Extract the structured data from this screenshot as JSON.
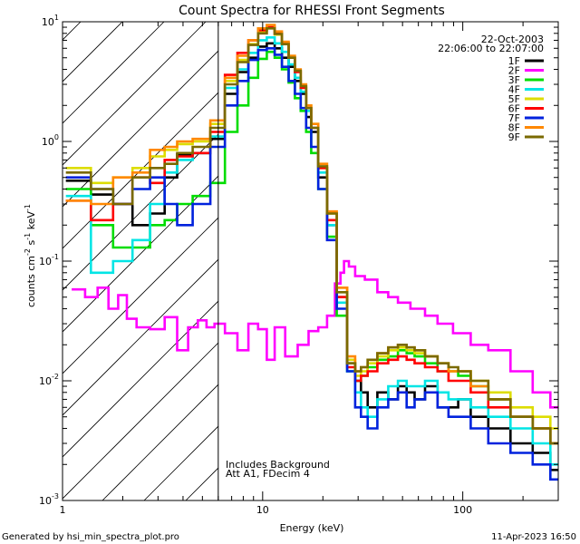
{
  "chart_data": {
    "type": "line",
    "title": "Count Spectra for RHESSI Front Segments",
    "xlabel": "Energy (keV)",
    "ylabel_parts": [
      "counts cm",
      "-2",
      " s",
      "-1",
      " keV",
      "-1"
    ],
    "xscale": "log",
    "yscale": "log",
    "xlim": [
      1,
      300
    ],
    "ylim": [
      0.001,
      10
    ],
    "x_ticks": [
      {
        "v": 1,
        "label": "1"
      },
      {
        "v": 10,
        "label": "10"
      },
      {
        "v": 100,
        "label": "100"
      }
    ],
    "y_ticks": [
      {
        "v": 10,
        "label": "10",
        "exp": "1"
      },
      {
        "v": 1,
        "label": "10",
        "exp": "0"
      },
      {
        "v": 0.1,
        "label": "10",
        "exp": "-1"
      },
      {
        "v": 0.01,
        "label": "10",
        "exp": "-2"
      },
      {
        "v": 0.001,
        "label": "10",
        "exp": "-3"
      }
    ],
    "date_text": "22-Oct-2003",
    "time_range_text": "22:06:00 to 22:07:00",
    "threshold_energy": 6,
    "annotations": [
      "Includes Background",
      "Att A1, FDecim 4"
    ],
    "series": [
      {
        "name": "1F",
        "color": "#000000",
        "x": [
          1.2,
          1.6,
          2,
          2.5,
          3,
          3.5,
          4,
          5,
          6,
          7,
          8,
          9,
          10,
          11,
          12,
          13,
          14,
          15,
          16,
          17,
          18,
          20,
          22,
          25,
          28,
          30,
          32,
          35,
          40,
          45,
          50,
          55,
          60,
          70,
          80,
          90,
          100,
          120,
          150,
          200,
          250,
          300
        ],
        "y": [
          0.47,
          0.36,
          0.3,
          0.2,
          0.25,
          0.5,
          0.78,
          0.8,
          1.05,
          2.5,
          3.8,
          5.0,
          6.2,
          6.6,
          6.0,
          5.0,
          4.2,
          3.2,
          2.5,
          1.6,
          1.2,
          0.5,
          0.2,
          0.05,
          0.014,
          0.01,
          0.008,
          0.006,
          0.008,
          0.007,
          0.009,
          0.008,
          0.007,
          0.009,
          0.006,
          0.006,
          0.007,
          0.005,
          0.004,
          0.003,
          0.0025,
          0.0018
        ]
      },
      {
        "name": "2F",
        "color": "#ff00ff",
        "x": [
          1.2,
          1.4,
          1.6,
          1.8,
          2,
          2.2,
          2.5,
          3,
          3.5,
          4,
          4.5,
          5,
          5.5,
          6,
          7,
          8,
          9,
          10,
          11,
          12,
          14,
          16,
          18,
          20,
          22,
          24,
          25,
          26,
          28,
          30,
          35,
          40,
          45,
          50,
          60,
          70,
          80,
          100,
          120,
          150,
          200,
          250,
          300
        ],
        "y": [
          0.058,
          0.05,
          0.06,
          0.04,
          0.052,
          0.033,
          0.028,
          0.027,
          0.034,
          0.018,
          0.028,
          0.032,
          0.028,
          0.03,
          0.025,
          0.018,
          0.03,
          0.027,
          0.015,
          0.028,
          0.016,
          0.02,
          0.026,
          0.028,
          0.035,
          0.065,
          0.08,
          0.1,
          0.09,
          0.075,
          0.07,
          0.055,
          0.05,
          0.045,
          0.04,
          0.035,
          0.03,
          0.025,
          0.02,
          0.018,
          0.012,
          0.008,
          0.006
        ]
      },
      {
        "name": "3F",
        "color": "#00dd00",
        "x": [
          1.2,
          1.6,
          2,
          2.5,
          3,
          3.5,
          4,
          5,
          6,
          7,
          8,
          9,
          10,
          11,
          12,
          13,
          14,
          15,
          16,
          17,
          18,
          20,
          22,
          25,
          28,
          30,
          32,
          35,
          40,
          45,
          50,
          55,
          60,
          70,
          80,
          90,
          100,
          120,
          150,
          200,
          250,
          300
        ],
        "y": [
          0.4,
          0.2,
          0.13,
          0.13,
          0.2,
          0.22,
          0.3,
          0.35,
          0.45,
          1.2,
          2.0,
          3.4,
          4.9,
          5.6,
          5.0,
          4.0,
          3.1,
          2.3,
          1.8,
          1.2,
          0.8,
          0.4,
          0.16,
          0.035,
          0.012,
          0.01,
          0.011,
          0.013,
          0.015,
          0.016,
          0.018,
          0.017,
          0.016,
          0.014,
          0.012,
          0.012,
          0.011,
          0.009,
          0.007,
          0.005,
          0.004,
          0.003
        ]
      },
      {
        "name": "4F",
        "color": "#00e5e5",
        "x": [
          1.2,
          1.6,
          2,
          2.5,
          3,
          3.5,
          4,
          5,
          6,
          7,
          8,
          9,
          10,
          11,
          12,
          13,
          14,
          15,
          16,
          17,
          18,
          20,
          22,
          25,
          28,
          30,
          32,
          35,
          40,
          45,
          50,
          55,
          60,
          70,
          80,
          90,
          100,
          120,
          150,
          200,
          250,
          300
        ],
        "y": [
          0.35,
          0.08,
          0.1,
          0.15,
          0.3,
          0.55,
          0.7,
          0.8,
          1.1,
          2.8,
          4.0,
          5.5,
          7.0,
          7.4,
          6.6,
          5.6,
          4.4,
          3.4,
          2.6,
          1.8,
          1.3,
          0.55,
          0.2,
          0.045,
          0.012,
          0.008,
          0.006,
          0.005,
          0.007,
          0.009,
          0.01,
          0.009,
          0.009,
          0.01,
          0.008,
          0.007,
          0.007,
          0.006,
          0.005,
          0.004,
          0.003,
          0.002
        ]
      },
      {
        "name": "5F",
        "color": "#dddd00",
        "x": [
          1.2,
          1.6,
          2,
          2.5,
          3,
          3.5,
          4,
          5,
          6,
          7,
          8,
          9,
          10,
          11,
          12,
          13,
          14,
          15,
          16,
          17,
          18,
          20,
          22,
          25,
          28,
          30,
          32,
          35,
          40,
          45,
          50,
          55,
          60,
          70,
          80,
          90,
          100,
          120,
          150,
          200,
          250,
          300
        ],
        "y": [
          0.6,
          0.45,
          0.5,
          0.6,
          0.75,
          0.85,
          0.95,
          1.0,
          1.4,
          3.2,
          4.8,
          6.5,
          8.2,
          8.9,
          7.8,
          6.5,
          5.0,
          3.9,
          2.9,
          2.0,
          1.4,
          0.6,
          0.25,
          0.06,
          0.015,
          0.011,
          0.012,
          0.014,
          0.016,
          0.018,
          0.019,
          0.018,
          0.017,
          0.016,
          0.014,
          0.012,
          0.012,
          0.01,
          0.008,
          0.006,
          0.005,
          0.004
        ]
      },
      {
        "name": "6F",
        "color": "#ff0000",
        "x": [
          1.2,
          1.6,
          2,
          2.5,
          3,
          3.5,
          4,
          5,
          6,
          7,
          8,
          9,
          10,
          11,
          12,
          13,
          14,
          15,
          16,
          17,
          18,
          20,
          22,
          25,
          28,
          30,
          32,
          35,
          40,
          45,
          50,
          55,
          60,
          70,
          80,
          90,
          100,
          120,
          150,
          200,
          250,
          300
        ],
        "y": [
          0.32,
          0.22,
          0.3,
          0.5,
          0.45,
          0.7,
          0.75,
          0.8,
          1.2,
          3.6,
          5.5,
          7.0,
          8.5,
          9.0,
          8.0,
          6.6,
          5.0,
          3.8,
          2.8,
          1.9,
          1.3,
          0.6,
          0.22,
          0.05,
          0.013,
          0.01,
          0.011,
          0.012,
          0.014,
          0.015,
          0.016,
          0.015,
          0.014,
          0.013,
          0.012,
          0.01,
          0.01,
          0.008,
          0.006,
          0.005,
          0.004,
          0.003
        ]
      },
      {
        "name": "7F",
        "color": "#0022dd",
        "x": [
          1.2,
          1.6,
          2,
          2.5,
          3,
          3.5,
          4,
          5,
          6,
          7,
          8,
          9,
          10,
          11,
          12,
          13,
          14,
          15,
          16,
          17,
          18,
          20,
          22,
          25,
          28,
          30,
          32,
          35,
          40,
          45,
          50,
          55,
          60,
          70,
          80,
          90,
          100,
          120,
          150,
          200,
          250,
          300
        ],
        "y": [
          0.5,
          0.4,
          0.3,
          0.4,
          0.5,
          0.3,
          0.2,
          0.3,
          0.9,
          2.0,
          3.2,
          4.8,
          5.8,
          6.0,
          5.3,
          4.2,
          3.2,
          2.5,
          1.9,
          1.3,
          0.9,
          0.4,
          0.15,
          0.04,
          0.012,
          0.006,
          0.005,
          0.004,
          0.006,
          0.007,
          0.008,
          0.006,
          0.007,
          0.008,
          0.006,
          0.005,
          0.005,
          0.004,
          0.003,
          0.0025,
          0.002,
          0.0015
        ]
      },
      {
        "name": "8F",
        "color": "#ff8800",
        "x": [
          1.2,
          1.6,
          2,
          2.5,
          3,
          3.5,
          4,
          5,
          6,
          7,
          8,
          9,
          10,
          11,
          12,
          13,
          14,
          15,
          16,
          17,
          18,
          20,
          22,
          25,
          28,
          30,
          32,
          35,
          40,
          45,
          50,
          55,
          60,
          70,
          80,
          90,
          100,
          120,
          150,
          200,
          250,
          300
        ],
        "y": [
          0.32,
          0.3,
          0.5,
          0.55,
          0.85,
          0.9,
          1.0,
          1.05,
          1.5,
          3.4,
          5.2,
          7.0,
          8.8,
          9.4,
          8.3,
          6.8,
          5.2,
          4.0,
          3.0,
          2.0,
          1.4,
          0.65,
          0.26,
          0.06,
          0.016,
          0.012,
          0.013,
          0.015,
          0.017,
          0.019,
          0.02,
          0.019,
          0.018,
          0.016,
          0.014,
          0.012,
          0.012,
          0.009,
          0.007,
          0.005,
          0.004,
          0.003
        ]
      },
      {
        "name": "9F",
        "color": "#7a6a00",
        "x": [
          1.2,
          1.6,
          2,
          2.5,
          3,
          3.5,
          4,
          5,
          6,
          7,
          8,
          9,
          10,
          11,
          12,
          13,
          14,
          15,
          16,
          17,
          18,
          20,
          22,
          25,
          28,
          30,
          32,
          35,
          40,
          45,
          50,
          55,
          60,
          70,
          80,
          90,
          100,
          120,
          150,
          200,
          250,
          300
        ],
        "y": [
          0.55,
          0.4,
          0.3,
          0.5,
          0.6,
          0.65,
          0.8,
          0.9,
          1.3,
          3.0,
          4.6,
          6.4,
          8.0,
          8.8,
          7.9,
          6.5,
          5.0,
          3.9,
          2.9,
          1.9,
          1.3,
          0.62,
          0.25,
          0.055,
          0.014,
          0.012,
          0.013,
          0.015,
          0.017,
          0.019,
          0.02,
          0.019,
          0.018,
          0.016,
          0.014,
          0.013,
          0.012,
          0.01,
          0.007,
          0.005,
          0.004,
          0.003
        ]
      }
    ]
  },
  "footer": {
    "generated_by": "Generated by hsi_min_spectra_plot.pro",
    "timestamp": "11-Apr-2023 16:50"
  }
}
